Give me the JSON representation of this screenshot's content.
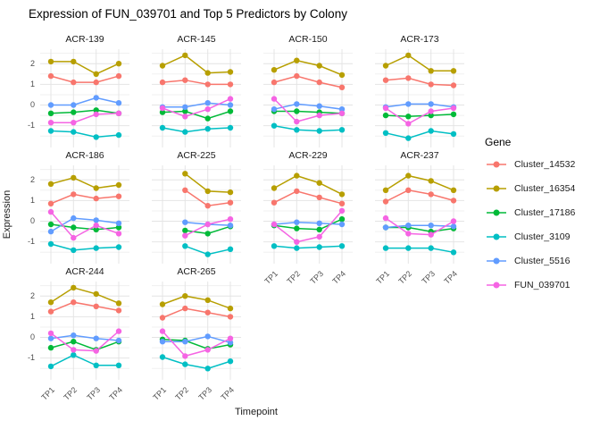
{
  "title": "Expression of FUN_039701 and Top 5 Predictors by Colony",
  "axes": {
    "x_label": "Timepoint",
    "y_label": "Expression",
    "x_ticks": [
      "TP1",
      "TP2",
      "TP3",
      "TP4"
    ],
    "y_ticks": [
      2,
      1,
      0,
      -1
    ]
  },
  "legend": {
    "title": "Gene",
    "entries": [
      {
        "label": "Cluster_14532",
        "color": "#F8766D"
      },
      {
        "label": "Cluster_16354",
        "color": "#B79F00"
      },
      {
        "label": "Cluster_17186",
        "color": "#00BA38"
      },
      {
        "label": "Cluster_3109",
        "color": "#00BFC4"
      },
      {
        "label": "Cluster_5516",
        "color": "#619CFF"
      },
      {
        "label": "FUN_039701",
        "color": "#F564E3"
      }
    ]
  },
  "chart_data": {
    "type": "line",
    "facet_by": "Colony",
    "categories": [
      "TP1",
      "TP2",
      "TP3",
      "TP4"
    ],
    "ylim": [
      -2.05,
      2.7
    ],
    "y_major_gridlines": [
      2,
      1,
      0,
      -1
    ],
    "y_minor_gridlines": [
      2.5,
      1.5,
      0.5,
      -0.5,
      -1.5
    ],
    "grid": true,
    "legend_position": "right",
    "facets": [
      {
        "colony": "ACR-139",
        "series": [
          {
            "gene": "Cluster_14532",
            "values": [
              1.4,
              1.1,
              1.1,
              1.4
            ]
          },
          {
            "gene": "Cluster_16354",
            "values": [
              2.1,
              2.1,
              1.5,
              2.0
            ]
          },
          {
            "gene": "Cluster_17186",
            "values": [
              -0.4,
              -0.35,
              -0.25,
              -0.4
            ]
          },
          {
            "gene": "Cluster_3109",
            "values": [
              -1.25,
              -1.3,
              -1.55,
              -1.45
            ]
          },
          {
            "gene": "Cluster_5516",
            "values": [
              0.0,
              0.0,
              0.35,
              0.1
            ]
          },
          {
            "gene": "FUN_039701",
            "values": [
              -0.85,
              -0.85,
              -0.45,
              -0.4
            ]
          }
        ]
      },
      {
        "colony": "ACR-145",
        "series": [
          {
            "gene": "Cluster_14532",
            "values": [
              1.1,
              1.2,
              1.0,
              1.0
            ]
          },
          {
            "gene": "Cluster_16354",
            "values": [
              1.9,
              2.4,
              1.55,
              1.6
            ]
          },
          {
            "gene": "Cluster_17186",
            "values": [
              -0.35,
              -0.3,
              -0.65,
              -0.3
            ]
          },
          {
            "gene": "Cluster_3109",
            "values": [
              -1.1,
              -1.3,
              -1.15,
              -1.1
            ]
          },
          {
            "gene": "Cluster_5516",
            "values": [
              -0.1,
              -0.1,
              0.1,
              0.0
            ]
          },
          {
            "gene": "FUN_039701",
            "values": [
              -0.15,
              -0.55,
              -0.2,
              0.3
            ]
          }
        ]
      },
      {
        "colony": "ACR-150",
        "series": [
          {
            "gene": "Cluster_14532",
            "values": [
              1.1,
              1.4,
              1.1,
              0.85
            ]
          },
          {
            "gene": "Cluster_16354",
            "values": [
              1.7,
              2.15,
              1.9,
              1.45
            ]
          },
          {
            "gene": "Cluster_17186",
            "values": [
              -0.3,
              -0.3,
              -0.35,
              -0.4
            ]
          },
          {
            "gene": "Cluster_3109",
            "values": [
              -1.0,
              -1.2,
              -1.25,
              -1.2
            ]
          },
          {
            "gene": "Cluster_5516",
            "values": [
              -0.2,
              0.05,
              -0.05,
              -0.2
            ]
          },
          {
            "gene": "FUN_039701",
            "values": [
              0.3,
              -0.8,
              -0.5,
              -0.4
            ]
          }
        ]
      },
      {
        "colony": "ACR-173",
        "series": [
          {
            "gene": "Cluster_14532",
            "values": [
              1.2,
              1.3,
              1.0,
              0.95
            ]
          },
          {
            "gene": "Cluster_16354",
            "values": [
              1.9,
              2.4,
              1.65,
              1.65
            ]
          },
          {
            "gene": "Cluster_17186",
            "values": [
              -0.5,
              -0.55,
              -0.5,
              -0.45
            ]
          },
          {
            "gene": "Cluster_3109",
            "values": [
              -1.35,
              -1.6,
              -1.25,
              -1.4
            ]
          },
          {
            "gene": "Cluster_5516",
            "values": [
              -0.1,
              0.05,
              0.05,
              -0.1
            ]
          },
          {
            "gene": "FUN_039701",
            "values": [
              -0.15,
              -0.9,
              -0.3,
              -0.15
            ]
          }
        ]
      },
      {
        "colony": "ACR-186",
        "series": [
          {
            "gene": "Cluster_14532",
            "values": [
              0.85,
              1.3,
              1.1,
              1.2
            ]
          },
          {
            "gene": "Cluster_16354",
            "values": [
              1.8,
              2.1,
              1.6,
              1.75
            ]
          },
          {
            "gene": "Cluster_17186",
            "values": [
              -0.15,
              -0.3,
              -0.4,
              -0.3
            ]
          },
          {
            "gene": "Cluster_3109",
            "values": [
              -1.1,
              -1.4,
              -1.3,
              -1.25
            ]
          },
          {
            "gene": "Cluster_5516",
            "values": [
              -0.5,
              0.15,
              0.05,
              -0.1
            ]
          },
          {
            "gene": "FUN_039701",
            "values": [
              0.45,
              -0.8,
              -0.2,
              -0.6
            ]
          }
        ]
      },
      {
        "colony": "ACR-225",
        "series": [
          {
            "gene": "Cluster_14532",
            "values": [
              null,
              1.5,
              0.75,
              0.9
            ]
          },
          {
            "gene": "Cluster_16354",
            "values": [
              null,
              2.3,
              1.45,
              1.4
            ]
          },
          {
            "gene": "Cluster_17186",
            "values": [
              null,
              -0.45,
              -0.6,
              -0.25
            ]
          },
          {
            "gene": "Cluster_3109",
            "values": [
              null,
              -1.2,
              -1.6,
              -1.35
            ]
          },
          {
            "gene": "Cluster_5516",
            "values": [
              null,
              -0.05,
              -0.15,
              -0.2
            ]
          },
          {
            "gene": "FUN_039701",
            "values": [
              null,
              -0.7,
              -0.15,
              0.1
            ]
          }
        ]
      },
      {
        "colony": "ACR-229",
        "series": [
          {
            "gene": "Cluster_14532",
            "values": [
              0.9,
              1.45,
              1.15,
              0.85
            ]
          },
          {
            "gene": "Cluster_16354",
            "values": [
              1.6,
              2.2,
              1.85,
              1.3
            ]
          },
          {
            "gene": "Cluster_17186",
            "values": [
              -0.2,
              -0.35,
              -0.4,
              0.1
            ]
          },
          {
            "gene": "Cluster_3109",
            "values": [
              -1.2,
              -1.3,
              -1.25,
              -1.2
            ]
          },
          {
            "gene": "Cluster_5516",
            "values": [
              -0.15,
              -0.05,
              -0.1,
              -0.15
            ]
          },
          {
            "gene": "FUN_039701",
            "values": [
              -0.15,
              -1.0,
              -0.75,
              0.5
            ]
          }
        ]
      },
      {
        "colony": "ACR-237",
        "series": [
          {
            "gene": "Cluster_14532",
            "values": [
              0.95,
              1.5,
              1.3,
              1.0
            ]
          },
          {
            "gene": "Cluster_16354",
            "values": [
              1.5,
              2.2,
              1.95,
              1.5
            ]
          },
          {
            "gene": "Cluster_17186",
            "values": [
              -0.3,
              -0.3,
              -0.5,
              -0.35
            ]
          },
          {
            "gene": "Cluster_3109",
            "values": [
              -1.3,
              -1.3,
              -1.3,
              -1.5
            ]
          },
          {
            "gene": "Cluster_5516",
            "values": [
              -0.3,
              -0.2,
              -0.2,
              -0.25
            ]
          },
          {
            "gene": "FUN_039701",
            "values": [
              0.15,
              -0.6,
              -0.65,
              0.0
            ]
          }
        ]
      },
      {
        "colony": "ACR-244",
        "series": [
          {
            "gene": "Cluster_14532",
            "values": [
              1.25,
              1.7,
              1.5,
              1.3
            ]
          },
          {
            "gene": "Cluster_16354",
            "values": [
              1.7,
              2.4,
              2.1,
              1.65
            ]
          },
          {
            "gene": "Cluster_17186",
            "values": [
              -0.5,
              -0.2,
              -0.6,
              -0.2
            ]
          },
          {
            "gene": "Cluster_3109",
            "values": [
              -1.4,
              -0.85,
              -1.35,
              -1.35
            ]
          },
          {
            "gene": "Cluster_5516",
            "values": [
              -0.05,
              0.1,
              -0.05,
              -0.15
            ]
          },
          {
            "gene": "FUN_039701",
            "values": [
              0.2,
              -0.6,
              -0.65,
              0.3
            ]
          }
        ]
      },
      {
        "colony": "ACR-265",
        "series": [
          {
            "gene": "Cluster_14532",
            "values": [
              0.95,
              1.4,
              1.2,
              1.0
            ]
          },
          {
            "gene": "Cluster_16354",
            "values": [
              1.6,
              2.0,
              1.8,
              1.4
            ]
          },
          {
            "gene": "Cluster_17186",
            "values": [
              -0.1,
              -0.15,
              -0.55,
              -0.35
            ]
          },
          {
            "gene": "Cluster_3109",
            "values": [
              -0.95,
              -1.3,
              -1.5,
              -1.15
            ]
          },
          {
            "gene": "Cluster_5516",
            "values": [
              -0.2,
              -0.2,
              0.05,
              -0.25
            ]
          },
          {
            "gene": "FUN_039701",
            "values": [
              0.3,
              -0.9,
              -0.6,
              -0.05
            ]
          }
        ]
      }
    ]
  }
}
